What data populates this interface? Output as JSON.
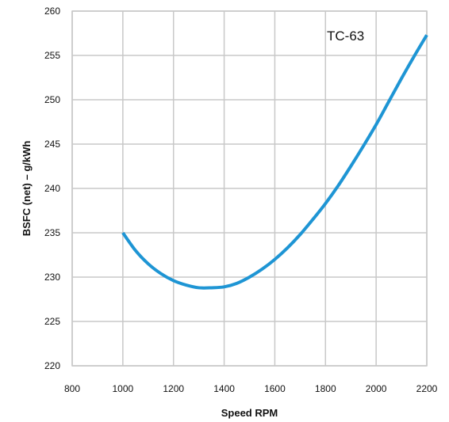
{
  "chart_data": {
    "type": "line",
    "xlabel": "Speed RPM",
    "ylabel": "BSFC (net) – g/kWh",
    "annotation": "TC-63",
    "xlim": [
      800,
      2200
    ],
    "ylim": [
      220,
      260
    ],
    "x_ticks": [
      800,
      1000,
      1200,
      1400,
      1600,
      1800,
      2000,
      2200
    ],
    "y_ticks": [
      220,
      225,
      230,
      235,
      240,
      245,
      250,
      255,
      260
    ],
    "grid": true,
    "series": [
      {
        "color": "#1e95d4",
        "points": [
          [
            1000,
            235.0
          ],
          [
            1050,
            233.0
          ],
          [
            1100,
            231.5
          ],
          [
            1150,
            230.4
          ],
          [
            1200,
            229.6
          ],
          [
            1250,
            229.1
          ],
          [
            1300,
            228.8
          ],
          [
            1350,
            228.8
          ],
          [
            1400,
            228.9
          ],
          [
            1450,
            229.3
          ],
          [
            1500,
            230.0
          ],
          [
            1550,
            230.9
          ],
          [
            1600,
            232.0
          ],
          [
            1650,
            233.3
          ],
          [
            1700,
            234.8
          ],
          [
            1750,
            236.5
          ],
          [
            1800,
            238.3
          ],
          [
            1850,
            240.3
          ],
          [
            1900,
            242.5
          ],
          [
            1950,
            244.8
          ],
          [
            2000,
            247.2
          ],
          [
            2050,
            249.8
          ],
          [
            2100,
            252.4
          ],
          [
            2150,
            254.9
          ],
          [
            2200,
            257.3
          ]
        ]
      }
    ]
  }
}
